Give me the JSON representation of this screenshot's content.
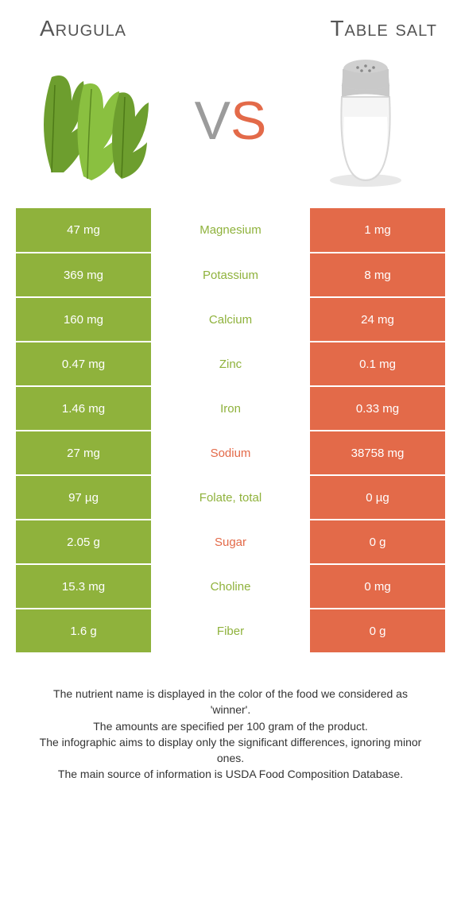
{
  "header": {
    "left": "Arugula",
    "right": "Table salt"
  },
  "vs": {
    "v": "V",
    "s": "S"
  },
  "colors": {
    "left": "#8fb23c",
    "right": "#e36a49",
    "mid_bg": "#ffffff"
  },
  "rows": [
    {
      "left": "47 mg",
      "label": "Magnesium",
      "right": "1 mg",
      "winner": "left"
    },
    {
      "left": "369 mg",
      "label": "Potassium",
      "right": "8 mg",
      "winner": "left"
    },
    {
      "left": "160 mg",
      "label": "Calcium",
      "right": "24 mg",
      "winner": "left"
    },
    {
      "left": "0.47 mg",
      "label": "Zinc",
      "right": "0.1 mg",
      "winner": "left"
    },
    {
      "left": "1.46 mg",
      "label": "Iron",
      "right": "0.33 mg",
      "winner": "left"
    },
    {
      "left": "27 mg",
      "label": "Sodium",
      "right": "38758 mg",
      "winner": "right"
    },
    {
      "left": "97 µg",
      "label": "Folate, total",
      "right": "0 µg",
      "winner": "left"
    },
    {
      "left": "2.05 g",
      "label": "Sugar",
      "right": "0 g",
      "winner": "right"
    },
    {
      "left": "15.3 mg",
      "label": "Choline",
      "right": "0 mg",
      "winner": "left"
    },
    {
      "left": "1.6 g",
      "label": "Fiber",
      "right": "0 g",
      "winner": "left"
    }
  ],
  "footnotes": [
    "The nutrient name is displayed in the color of the food we considered as 'winner'.",
    "The amounts are specified per 100 gram of the product.",
    "The infographic aims to display only the significant differences, ignoring minor ones.",
    "The main source of information is USDA Food Composition Database."
  ],
  "arugula_leaf_color": "#6d9e2e",
  "arugula_leaf_color2": "#8ac040",
  "salt_cap_color": "#c9c9c9",
  "salt_glass_color": "#e8e8e8",
  "salt_fill_color": "#ffffff"
}
